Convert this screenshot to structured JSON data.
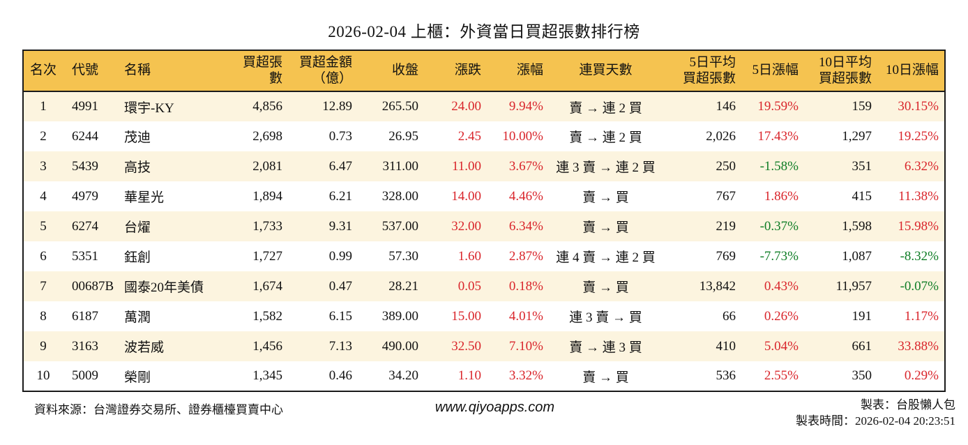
{
  "title": "2026-02-04 上櫃：外資當日買超張數排行榜",
  "colors": {
    "header_bg": "#f5c350",
    "row_alt_bg": "#fcf4df",
    "row_bg": "#ffffff",
    "positive_red": "#d9252b",
    "negative_green": "#0f7d26",
    "border": "#1a1a1a"
  },
  "table": {
    "headers": [
      "名次",
      "代號",
      "名稱",
      "買超張數",
      "買超金額\n（億）",
      "收盤",
      "漲跌",
      "漲幅",
      "連買天數",
      "5日平均\n買超張數",
      "5日漲幅",
      "10日平均\n買超張數",
      "10日漲幅"
    ],
    "rows": [
      {
        "cells": [
          {
            "t": "1"
          },
          {
            "t": "4991"
          },
          {
            "t": "環宇-KY"
          },
          {
            "t": "4,856"
          },
          {
            "t": "12.89"
          },
          {
            "t": "265.50"
          },
          {
            "t": "24.00",
            "cls": "red"
          },
          {
            "t": "9.94%",
            "cls": "red"
          },
          {
            "t": "賣 → 連 2 買"
          },
          {
            "t": "146"
          },
          {
            "t": "19.59%",
            "cls": "red"
          },
          {
            "t": "159"
          },
          {
            "t": "30.15%",
            "cls": "red"
          }
        ]
      },
      {
        "cells": [
          {
            "t": "2"
          },
          {
            "t": "6244"
          },
          {
            "t": "茂迪"
          },
          {
            "t": "2,698"
          },
          {
            "t": "0.73"
          },
          {
            "t": "26.95"
          },
          {
            "t": "2.45",
            "cls": "red"
          },
          {
            "t": "10.00%",
            "cls": "red"
          },
          {
            "t": "賣 → 連 2 買"
          },
          {
            "t": "2,026"
          },
          {
            "t": "17.43%",
            "cls": "red"
          },
          {
            "t": "1,297"
          },
          {
            "t": "19.25%",
            "cls": "red"
          }
        ]
      },
      {
        "cells": [
          {
            "t": "3"
          },
          {
            "t": "5439"
          },
          {
            "t": "高技"
          },
          {
            "t": "2,081"
          },
          {
            "t": "6.47"
          },
          {
            "t": "311.00"
          },
          {
            "t": "11.00",
            "cls": "red"
          },
          {
            "t": "3.67%",
            "cls": "red"
          },
          {
            "t": "連 3 賣 → 連 2 買"
          },
          {
            "t": "250"
          },
          {
            "t": "-1.58%",
            "cls": "green"
          },
          {
            "t": "351"
          },
          {
            "t": "6.32%",
            "cls": "red"
          }
        ]
      },
      {
        "cells": [
          {
            "t": "4"
          },
          {
            "t": "4979"
          },
          {
            "t": "華星光"
          },
          {
            "t": "1,894"
          },
          {
            "t": "6.21"
          },
          {
            "t": "328.00"
          },
          {
            "t": "14.00",
            "cls": "red"
          },
          {
            "t": "4.46%",
            "cls": "red"
          },
          {
            "t": "賣 → 買"
          },
          {
            "t": "767"
          },
          {
            "t": "1.86%",
            "cls": "red"
          },
          {
            "t": "415"
          },
          {
            "t": "11.38%",
            "cls": "red"
          }
        ]
      },
      {
        "cells": [
          {
            "t": "5"
          },
          {
            "t": "6274"
          },
          {
            "t": "台燿"
          },
          {
            "t": "1,733"
          },
          {
            "t": "9.31"
          },
          {
            "t": "537.00"
          },
          {
            "t": "32.00",
            "cls": "red"
          },
          {
            "t": "6.34%",
            "cls": "red"
          },
          {
            "t": "賣 → 買"
          },
          {
            "t": "219"
          },
          {
            "t": "-0.37%",
            "cls": "green"
          },
          {
            "t": "1,598"
          },
          {
            "t": "15.98%",
            "cls": "red"
          }
        ]
      },
      {
        "cells": [
          {
            "t": "6"
          },
          {
            "t": "5351"
          },
          {
            "t": "鈺創"
          },
          {
            "t": "1,727"
          },
          {
            "t": "0.99"
          },
          {
            "t": "57.30"
          },
          {
            "t": "1.60",
            "cls": "red"
          },
          {
            "t": "2.87%",
            "cls": "red"
          },
          {
            "t": "連 4 賣 → 連 2 買"
          },
          {
            "t": "769"
          },
          {
            "t": "-7.73%",
            "cls": "green"
          },
          {
            "t": "1,087"
          },
          {
            "t": "-8.32%",
            "cls": "green"
          }
        ]
      },
      {
        "cells": [
          {
            "t": "7"
          },
          {
            "t": "00687B"
          },
          {
            "t": "國泰20年美債"
          },
          {
            "t": "1,674"
          },
          {
            "t": "0.47"
          },
          {
            "t": "28.21"
          },
          {
            "t": "0.05",
            "cls": "red"
          },
          {
            "t": "0.18%",
            "cls": "red"
          },
          {
            "t": "賣 → 買"
          },
          {
            "t": "13,842"
          },
          {
            "t": "0.43%",
            "cls": "red"
          },
          {
            "t": "11,957"
          },
          {
            "t": "-0.07%",
            "cls": "green"
          }
        ]
      },
      {
        "cells": [
          {
            "t": "8"
          },
          {
            "t": "6187"
          },
          {
            "t": "萬潤"
          },
          {
            "t": "1,582"
          },
          {
            "t": "6.15"
          },
          {
            "t": "389.00"
          },
          {
            "t": "15.00",
            "cls": "red"
          },
          {
            "t": "4.01%",
            "cls": "red"
          },
          {
            "t": "連 3 賣 → 買"
          },
          {
            "t": "66"
          },
          {
            "t": "0.26%",
            "cls": "red"
          },
          {
            "t": "191"
          },
          {
            "t": "1.17%",
            "cls": "red"
          }
        ]
      },
      {
        "cells": [
          {
            "t": "9"
          },
          {
            "t": "3163"
          },
          {
            "t": "波若威"
          },
          {
            "t": "1,456"
          },
          {
            "t": "7.13"
          },
          {
            "t": "490.00"
          },
          {
            "t": "32.50",
            "cls": "red"
          },
          {
            "t": "7.10%",
            "cls": "red"
          },
          {
            "t": "賣 → 連 3 買"
          },
          {
            "t": "410"
          },
          {
            "t": "5.04%",
            "cls": "red"
          },
          {
            "t": "661"
          },
          {
            "t": "33.88%",
            "cls": "red"
          }
        ]
      },
      {
        "cells": [
          {
            "t": "10"
          },
          {
            "t": "5009"
          },
          {
            "t": "榮剛"
          },
          {
            "t": "1,345"
          },
          {
            "t": "0.46"
          },
          {
            "t": "34.20"
          },
          {
            "t": "1.10",
            "cls": "red"
          },
          {
            "t": "3.32%",
            "cls": "red"
          },
          {
            "t": "賣 → 買"
          },
          {
            "t": "536"
          },
          {
            "t": "2.55%",
            "cls": "red"
          },
          {
            "t": "350"
          },
          {
            "t": "0.29%",
            "cls": "red"
          }
        ]
      }
    ]
  },
  "footer": {
    "source": "資料來源：台灣證券交易所、證券櫃檯買賣中心",
    "website": "www.qiyoapps.com",
    "creator": "製表：台股懶人包",
    "created_time": "製表時間：2026-02-04 20:23:51"
  }
}
